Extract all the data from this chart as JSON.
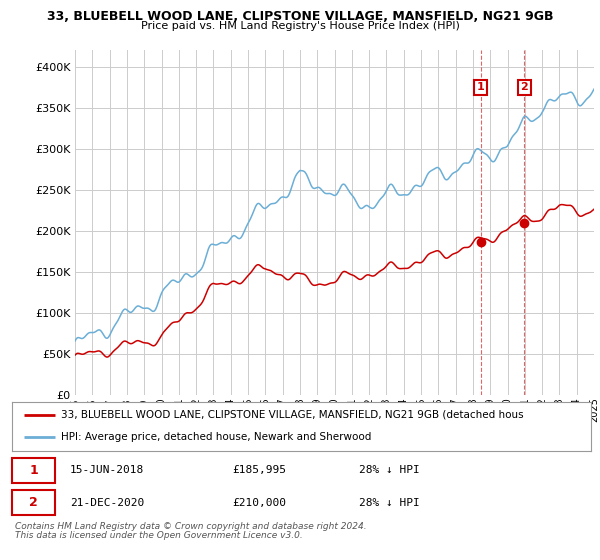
{
  "title_line1": "33, BLUEBELL WOOD LANE, CLIPSTONE VILLAGE, MANSFIELD, NG21 9GB",
  "title_line2": "Price paid vs. HM Land Registry's House Price Index (HPI)",
  "ytick_values": [
    0,
    50000,
    100000,
    150000,
    200000,
    250000,
    300000,
    350000,
    400000
  ],
  "ylim": [
    0,
    420000
  ],
  "hpi_color": "#6baed6",
  "sale_color": "#cc0000",
  "annotation1_date": "15-JUN-2018",
  "annotation1_price_str": "£185,995",
  "annotation1_note": "28% ↓ HPI",
  "annotation2_date": "21-DEC-2020",
  "annotation2_price_str": "£210,000",
  "annotation2_note": "28% ↓ HPI",
  "sale1_year": 2018.45,
  "sale2_year": 2020.97,
  "sale1_price": 185995,
  "sale2_price": 210000,
  "legend_line1": "33, BLUEBELL WOOD LANE, CLIPSTONE VILLAGE, MANSFIELD, NG21 9GB (detached hous",
  "legend_line2": "HPI: Average price, detached house, Newark and Sherwood",
  "footer_line1": "Contains HM Land Registry data © Crown copyright and database right 2024.",
  "footer_line2": "This data is licensed under the Open Government Licence v3.0.",
  "background_color": "#ffffff",
  "grid_color": "#cccccc",
  "xlim_start": 1995,
  "xlim_end": 2025
}
